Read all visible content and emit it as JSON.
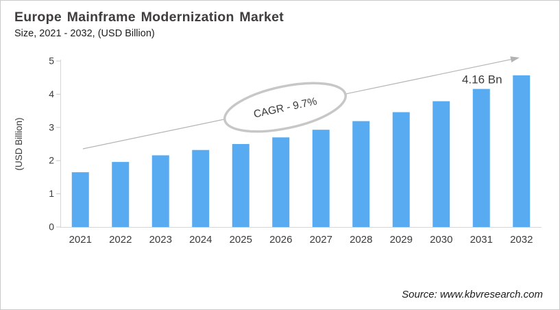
{
  "colors": {
    "bar": "#58abf0",
    "title_text": "#3f3e3c",
    "axis_text": "#3a3a3a",
    "axis_line": "#d6d6d6",
    "tick_line": "#c9c9c9",
    "trend_arrow": "#b3b3b3",
    "ellipse_stroke": "#c7c7c7",
    "annotation_text": "#3a3a3a"
  },
  "chart_data": {
    "type": "bar",
    "title": "Europe Mainframe Modernization Market",
    "subtitle": "Size, 2021 - 2032, (USD Billion)",
    "categories": [
      "2021",
      "2022",
      "2023",
      "2024",
      "2025",
      "2026",
      "2027",
      "2028",
      "2029",
      "2030",
      "2031",
      "2032"
    ],
    "values": [
      1.65,
      1.96,
      2.16,
      2.32,
      2.5,
      2.7,
      2.93,
      3.19,
      3.46,
      3.79,
      4.16,
      4.57
    ],
    "xlabel": "",
    "ylabel": "(USD Billion)",
    "ylim": [
      0,
      5
    ],
    "yticks": [
      0,
      1,
      2,
      3,
      4,
      5
    ],
    "grid": false,
    "legend": "none",
    "annotations": {
      "cagr_label": "CAGR - 9.7%",
      "point_label": {
        "category": "2031",
        "text": "4.16 Bn"
      },
      "trend_arrow": "up-right"
    },
    "source": "Source: www.kbvresearch.com"
  }
}
